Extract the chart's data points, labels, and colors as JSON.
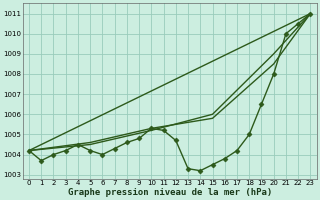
{
  "bg_color": "#cceee0",
  "grid_color": "#99ccbb",
  "line_color": "#2d5a1b",
  "xlabel": "Graphe pression niveau de la mer (hPa)",
  "xlabel_fontsize": 6.5,
  "ylim": [
    1002.8,
    1011.5
  ],
  "xlim": [
    -0.5,
    23.5
  ],
  "yticks": [
    1003,
    1004,
    1005,
    1006,
    1007,
    1008,
    1009,
    1010,
    1011
  ],
  "xticks": [
    0,
    1,
    2,
    3,
    4,
    5,
    6,
    7,
    8,
    9,
    10,
    11,
    12,
    13,
    14,
    15,
    16,
    17,
    18,
    19,
    20,
    21,
    22,
    23
  ],
  "series": [
    {
      "x": [
        0,
        1,
        2,
        3,
        4,
        5,
        6,
        7,
        8,
        9,
        10,
        11,
        12,
        13,
        14,
        15,
        16,
        17,
        18,
        19,
        20,
        21,
        22,
        23
      ],
      "y": [
        1004.2,
        1003.7,
        1004.0,
        1004.2,
        1004.5,
        1004.2,
        1004.0,
        1004.3,
        1004.6,
        1004.8,
        1005.3,
        1005.2,
        1004.7,
        1003.3,
        1003.2,
        1003.5,
        1003.8,
        1004.2,
        1005.0,
        1006.5,
        1008.0,
        1010.0,
        1010.5,
        1011.0
      ],
      "marker": "D",
      "markersize": 2.5,
      "linewidth": 1.0,
      "has_marker": true
    },
    {
      "x": [
        0,
        23
      ],
      "y": [
        1004.2,
        1011.0
      ],
      "marker": null,
      "markersize": 0,
      "linewidth": 1.0,
      "has_marker": false
    },
    {
      "x": [
        0,
        5,
        10,
        15,
        20,
        23
      ],
      "y": [
        1004.2,
        1004.6,
        1005.3,
        1005.8,
        1008.5,
        1011.0
      ],
      "marker": null,
      "markersize": 0,
      "linewidth": 1.0,
      "has_marker": false
    },
    {
      "x": [
        0,
        5,
        10,
        15,
        20,
        23
      ],
      "y": [
        1004.2,
        1004.5,
        1005.2,
        1006.0,
        1009.0,
        1011.0
      ],
      "marker": null,
      "markersize": 0,
      "linewidth": 1.0,
      "has_marker": false
    }
  ]
}
